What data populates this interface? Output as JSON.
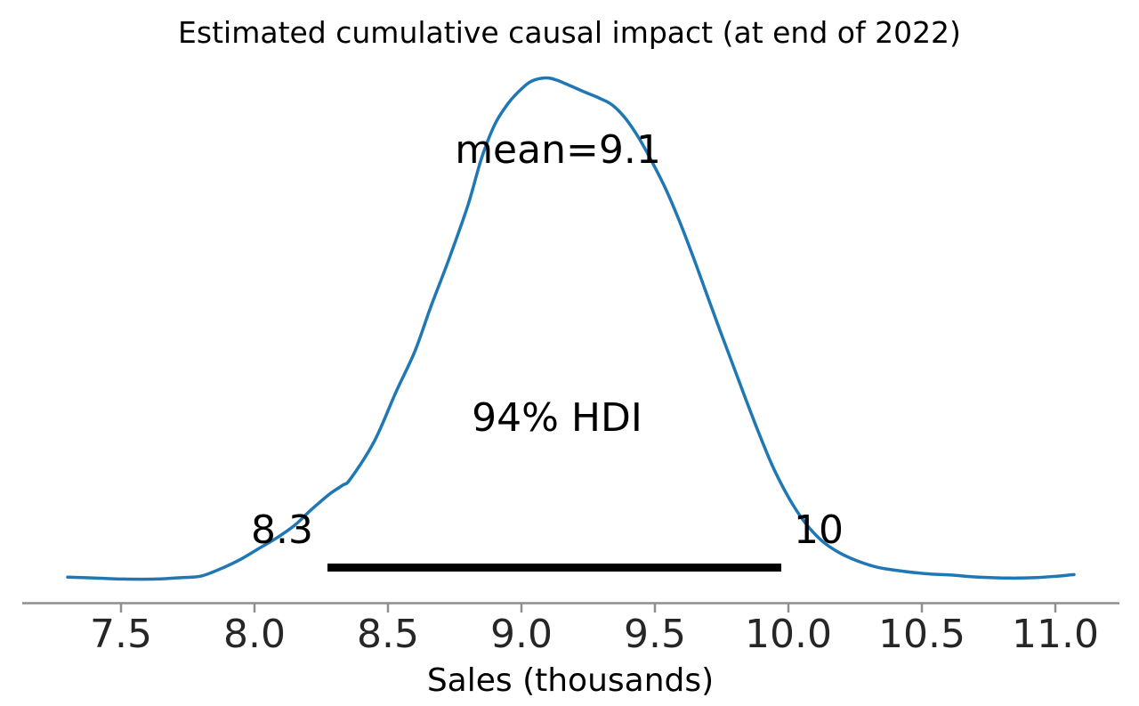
{
  "title": "Estimated cumulative causal impact (at end of 2022)",
  "xlabel": "Sales (thousands)",
  "annotations": {
    "mean_label": "mean=9.1",
    "hdi_label": "94% HDI",
    "hdi_lower_label": "8.3",
    "hdi_upper_label": "10"
  },
  "colors": {
    "curve": "#1f77b4",
    "hdi_bar": "#000000",
    "axis": "#8e8e8e",
    "text": "#000000"
  },
  "chart_data": {
    "type": "line",
    "subtype": "posterior-density-kde",
    "title": "Estimated cumulative causal impact (at end of 2022)",
    "xlabel": "Sales (thousands)",
    "ylabel": "",
    "grid": false,
    "legend": false,
    "mean": 9.1,
    "hdi": {
      "prob": 0.94,
      "lower": 8.3,
      "upper": 10.0
    },
    "x_ticks": [
      7.5,
      8.0,
      8.5,
      9.0,
      9.5,
      10.0,
      10.5,
      11.0
    ],
    "x_tick_labels": [
      "7.5",
      "8.0",
      "8.5",
      "9.0",
      "9.5",
      "10.0",
      "10.5",
      "11.0"
    ],
    "xlim": [
      7.13,
      11.24
    ],
    "x": [
      7.3,
      7.4,
      7.51,
      7.63,
      7.73,
      7.8,
      7.88,
      7.95,
      8.01,
      8.08,
      8.15,
      8.21,
      8.28,
      8.33,
      8.36,
      8.45,
      8.53,
      8.6,
      8.66,
      8.73,
      8.8,
      8.85,
      8.9,
      8.95,
      9.0,
      9.04,
      9.09,
      9.13,
      9.18,
      9.24,
      9.29,
      9.34,
      9.39,
      9.44,
      9.49,
      9.54,
      9.59,
      9.64,
      9.69,
      9.74,
      9.79,
      9.84,
      9.89,
      9.94,
      9.99,
      10.04,
      10.09,
      10.14,
      10.2,
      10.26,
      10.33,
      10.41,
      10.51,
      10.61,
      10.71,
      10.83,
      10.93,
      11.01,
      11.07
    ],
    "density": [
      0.005,
      0.003,
      0.001,
      0.001,
      0.004,
      0.007,
      0.023,
      0.041,
      0.06,
      0.082,
      0.108,
      0.138,
      0.17,
      0.188,
      0.201,
      0.277,
      0.374,
      0.454,
      0.543,
      0.641,
      0.747,
      0.839,
      0.907,
      0.949,
      0.978,
      0.994,
      1.0,
      0.996,
      0.985,
      0.971,
      0.96,
      0.946,
      0.919,
      0.88,
      0.832,
      0.779,
      0.717,
      0.648,
      0.575,
      0.502,
      0.431,
      0.36,
      0.291,
      0.227,
      0.174,
      0.13,
      0.096,
      0.071,
      0.051,
      0.037,
      0.025,
      0.018,
      0.012,
      0.009,
      0.005,
      0.003,
      0.004,
      0.007,
      0.01
    ]
  }
}
